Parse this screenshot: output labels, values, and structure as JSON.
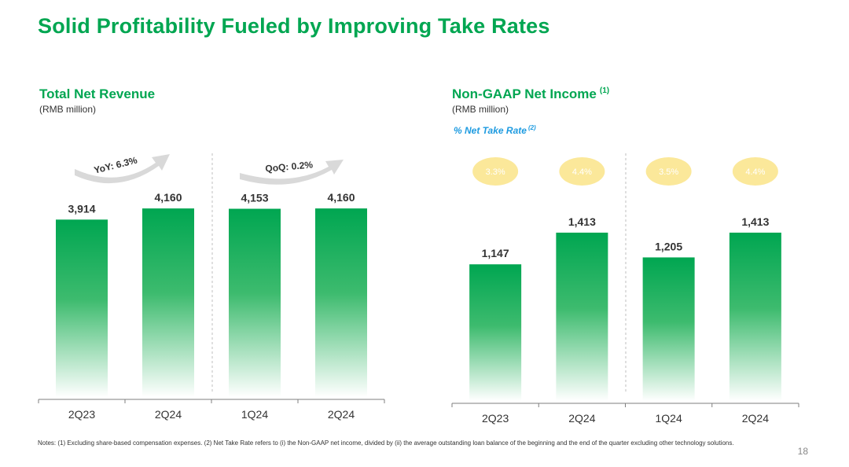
{
  "slide_title": "Solid Profitability Fueled by Improving Take Rates",
  "colors": {
    "accent": "#00a651",
    "take_rate_blue": "#1e9be0",
    "bubble": "#fbe89a",
    "arrow": "#d9d9d9"
  },
  "left_chart": {
    "title": "Total Net Revenue",
    "unit": "(RMB million)",
    "yoy_label": "YoY: 6.3%",
    "qoq_label": "QoQ: 0.2%"
  },
  "right_chart": {
    "title": "Non-GAAP Net Income",
    "title_note": "(1)",
    "unit": "(RMB million)",
    "take_rate_label": "% Net Take Rate",
    "take_rate_note": "(2)"
  },
  "chart_data": [
    {
      "type": "bar",
      "title": "Total Net Revenue",
      "ylabel": "(RMB million)",
      "categories": [
        "2Q23",
        "2Q24",
        "1Q24",
        "2Q24"
      ],
      "values": [
        3914,
        4160,
        4153,
        4160
      ],
      "value_labels": [
        "3,914",
        "4,160",
        "4,153",
        "4,160"
      ],
      "ylim": [
        0,
        4700
      ],
      "grid": false,
      "legend": "none"
    },
    {
      "type": "bar",
      "title": "Non-GAAP Net Income",
      "ylabel": "(RMB million)",
      "categories": [
        "2Q23",
        "2Q24",
        "1Q24",
        "2Q24"
      ],
      "values": [
        1147,
        1413,
        1205,
        1413
      ],
      "value_labels": [
        "1,147",
        "1,413",
        "1,205",
        "1,413"
      ],
      "net_take_rate": [
        "3.3%",
        "4.4%",
        "3.5%",
        "4.4%"
      ],
      "ylim": [
        0,
        1650
      ],
      "grid": false,
      "legend": "none"
    }
  ],
  "notes": "Notes: (1) Excluding share-based compensation expenses. (2) Net Take Rate refers to (i) the Non-GAAP net income, divided by (ii) the average outstanding loan balance of the beginning and the end of the quarter excluding other technology solutions.",
  "page_number": "18"
}
